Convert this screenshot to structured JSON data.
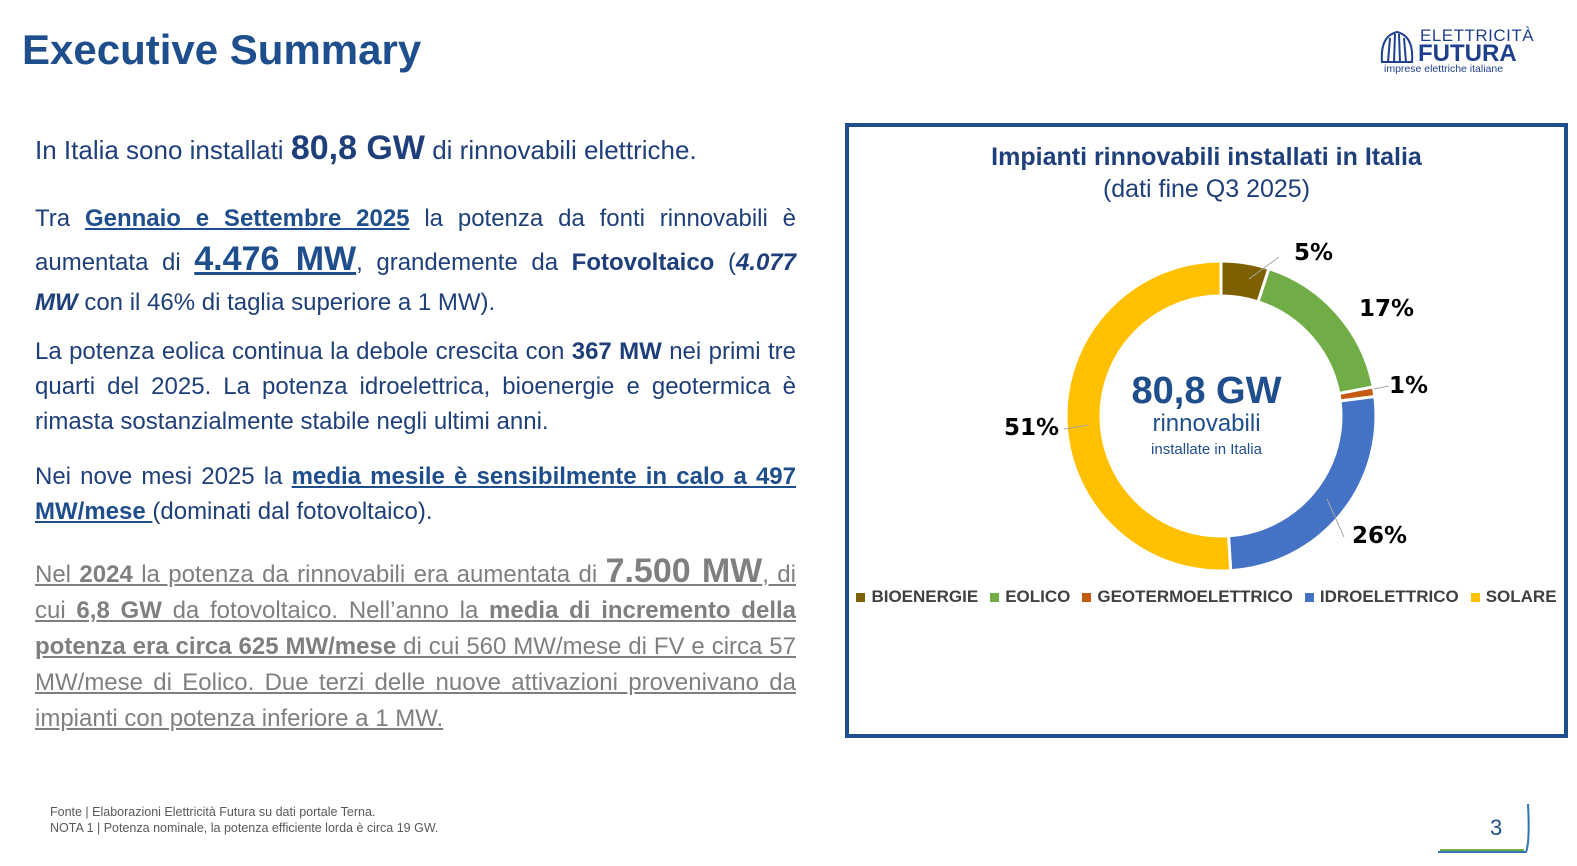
{
  "title": "Executive Summary",
  "logo": {
    "line1": "ELETTRICITÀ",
    "line2": "FUTURA",
    "line3": "imprese elettriche italiane"
  },
  "p1": {
    "a": "In Italia sono installati ",
    "b": "80,8 GW",
    "c": " di rinnovabili elettriche."
  },
  "p2": {
    "a": "Tra ",
    "b": "Gennaio e Settembre 2025",
    "c": " la potenza da fonti rinnovabili è aumentata di ",
    "d": "4.476 MW",
    "e": ", grandemente da ",
    "f": "Fotovoltaico",
    "g": "(",
    "h": "4.077 MW",
    "i": " con il 46% di taglia superiore a 1 MW)."
  },
  "p3": {
    "a": "La potenza eolica continua la debole crescita con ",
    "b": "367 MW",
    "c": " nei primi tre quarti del 2025. La potenza idroelettrica, bioenergie e geotermica è rimasta sostanzialmente stabile negli ultimi anni."
  },
  "p4": {
    "a": "Nei nove mesi 2025 la ",
    "b": "media mesile è sensibilmente in calo a 497 MW/mese ",
    "c": "(dominati dal fotovoltaico)."
  },
  "p5": {
    "a": "Nel ",
    "b": "2024",
    "c": " la potenza da rinnovabili era aumentata di ",
    "d": "7.500 MW",
    "e": ", di cui ",
    "f": "6,8 GW",
    "g": " da fotovoltaico. Nell’anno la ",
    "h": "media di incremento della potenza era circa 625 MW/mese",
    "i": " di cui 560 MW/mese di FV e circa 57 MW/mese di Eolico. Due terzi delle nuove attivazioni provenivano da impianti con potenza inferiore a 1 MW."
  },
  "footer": {
    "source": "Fonte | Elaborazioni Elettricità Futura su dati portale Terna.",
    "note": "NOTA 1 | Potenza nominale, la potenza efficiente lorda è circa 19 GW."
  },
  "page_number": "3",
  "chart_data": {
    "type": "pie",
    "title": "Impianti rinnovabili installati in Italia",
    "subtitle": "(dati fine Q3 2025)",
    "center": {
      "value": "80,8 GW",
      "line2": "rinnovabili",
      "line3": "installate in Italia"
    },
    "categories": [
      "BIOENERGIE",
      "EOLICO",
      "GEOTERMOELETTRICO",
      "IDROELETTRICO",
      "SOLARE"
    ],
    "values": [
      5,
      17,
      1,
      26,
      51
    ],
    "labels": [
      "5%",
      "17%",
      "1%",
      "26%",
      "51%"
    ],
    "colors": [
      "#7f6000",
      "#70ad47",
      "#c55a11",
      "#4472c4",
      "#ffc000"
    ],
    "legend": "bottom"
  }
}
